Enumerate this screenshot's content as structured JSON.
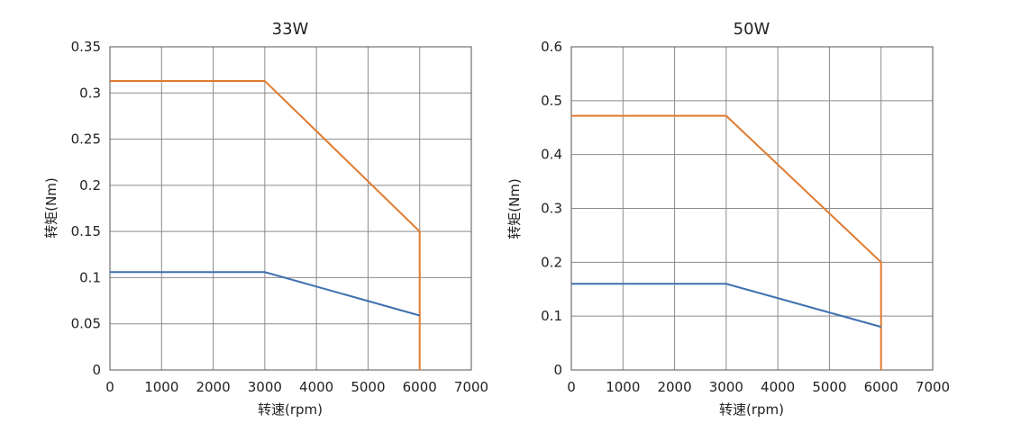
{
  "chart_data": [
    {
      "type": "line",
      "title": "33W",
      "xlabel": "转速(rpm)",
      "ylabel": "转矩(Nm)",
      "xlim": [
        0,
        7000
      ],
      "ylim": [
        0,
        0.35
      ],
      "xticks": [
        0,
        1000,
        2000,
        3000,
        4000,
        5000,
        6000,
        7000
      ],
      "yticks": [
        0,
        0.05,
        0.1,
        0.15,
        0.2,
        0.25,
        0.3,
        0.35
      ],
      "xtick_labels": [
        "0",
        "1000",
        "2000",
        "3000",
        "4000",
        "5000",
        "6000",
        "7000"
      ],
      "ytick_labels": [
        "0",
        "0.05",
        "0.1",
        "0.15",
        "0.2",
        "0.25",
        "0.3",
        "0.35"
      ],
      "grid": true,
      "series": [
        {
          "color": "#e07a2e",
          "x": [
            0,
            3000,
            6000,
            6000
          ],
          "y": [
            0.313,
            0.313,
            0.15,
            0
          ]
        },
        {
          "color": "#3f6fb0",
          "x": [
            0,
            3000,
            6000
          ],
          "y": [
            0.106,
            0.106,
            0.059
          ]
        }
      ]
    },
    {
      "type": "line",
      "title": "50W",
      "xlabel": "转速(rpm)",
      "ylabel": "转矩(Nm)",
      "xlim": [
        0,
        7000
      ],
      "ylim": [
        0,
        0.6
      ],
      "xticks": [
        0,
        1000,
        2000,
        3000,
        4000,
        5000,
        6000,
        7000
      ],
      "yticks": [
        0,
        0.1,
        0.2,
        0.3,
        0.4,
        0.5,
        0.6
      ],
      "xtick_labels": [
        "0",
        "1000",
        "2000",
        "3000",
        "4000",
        "5000",
        "6000",
        "7000"
      ],
      "ytick_labels": [
        "0",
        "0.1",
        "0.2",
        "0.3",
        "0.4",
        "0.5",
        "0.6"
      ],
      "grid": true,
      "series": [
        {
          "color": "#e07a2e",
          "x": [
            0,
            3000,
            6000,
            6000
          ],
          "y": [
            0.472,
            0.472,
            0.2,
            0
          ]
        },
        {
          "color": "#3f6fb0",
          "x": [
            0,
            3000,
            6000
          ],
          "y": [
            0.16,
            0.16,
            0.08
          ]
        }
      ]
    }
  ]
}
